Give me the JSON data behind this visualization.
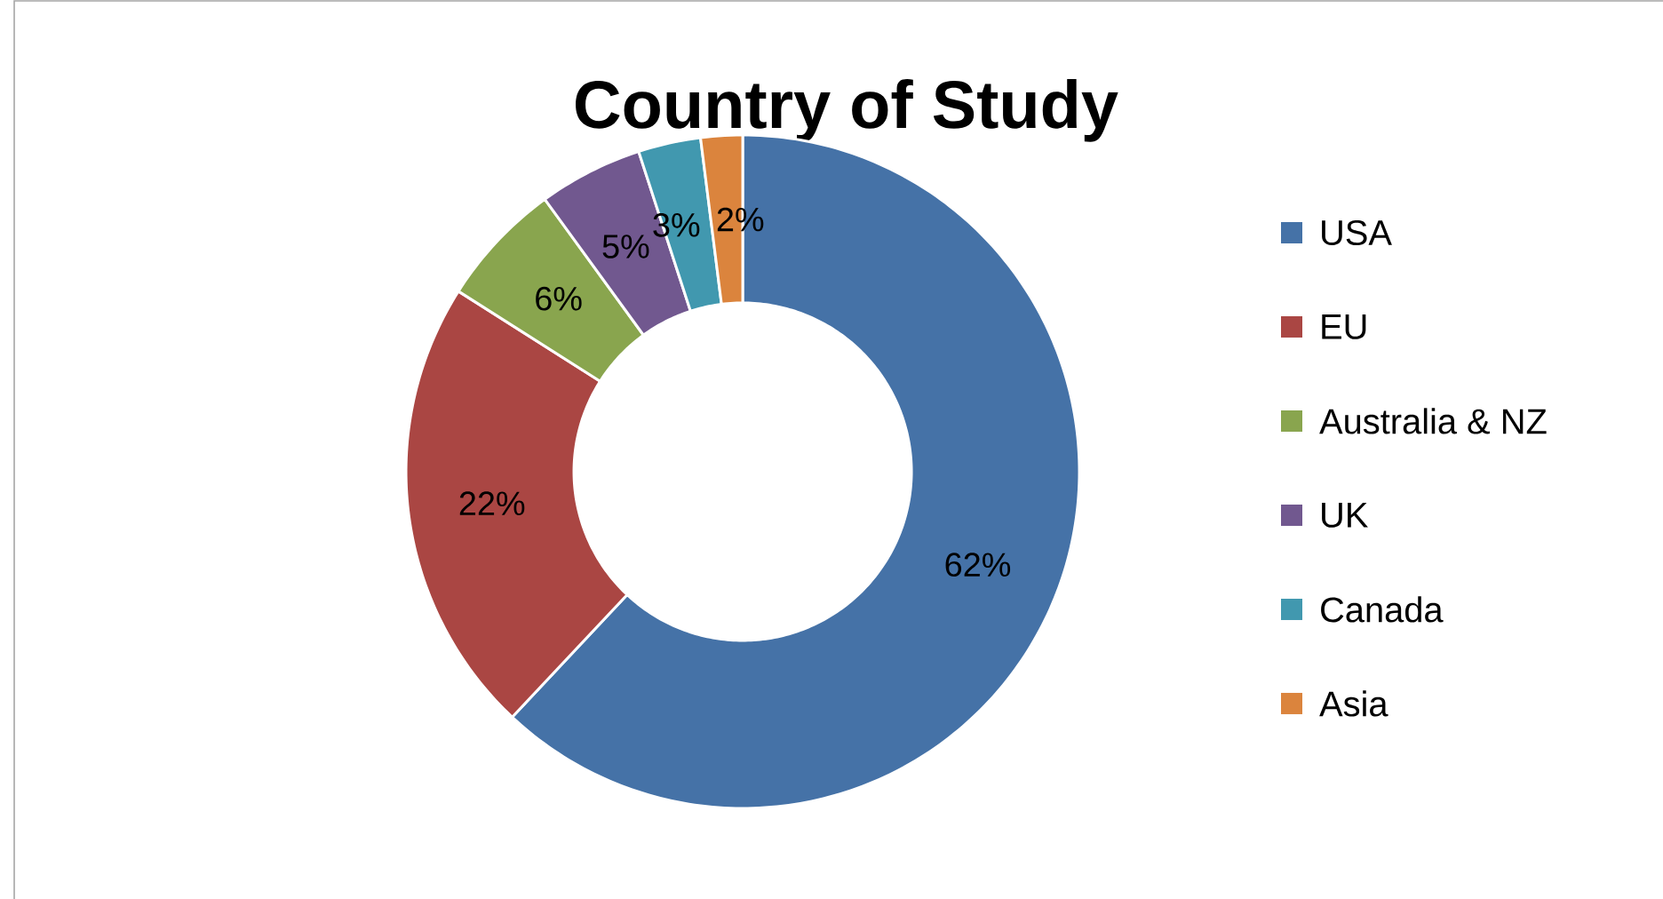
{
  "chart_data": {
    "type": "donut",
    "title": "Country of Study",
    "categories": [
      "USA",
      "EU",
      "Australia & NZ",
      "UK",
      "Canada",
      "Asia"
    ],
    "values": [
      62,
      22,
      6,
      5,
      3,
      2
    ],
    "colors": [
      "#4572a7",
      "#aa4643",
      "#89a54e",
      "#71588f",
      "#4198af",
      "#db843d"
    ],
    "value_labels": [
      "62%",
      "22%",
      "6%",
      "5%",
      "3%",
      "2%"
    ],
    "legend": "right"
  }
}
